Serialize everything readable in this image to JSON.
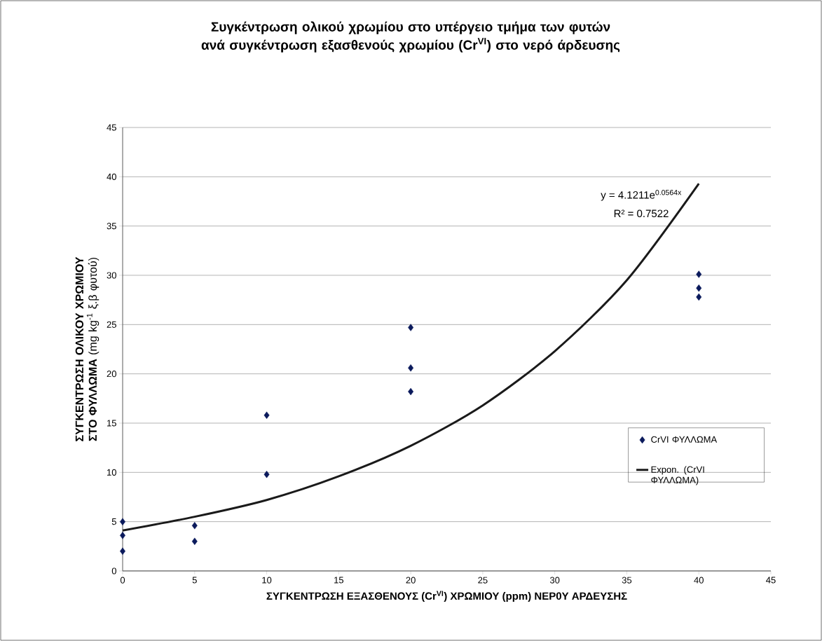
{
  "chart_data": {
    "type": "scatter",
    "title": "Συγκέντρωση ολικού χρωμίου στο υπέργειο τμήμα των φυτών ανά συγκέντρωση εξασθενούς χρωμίου (Cr$^{VI}$) στο νερό άρδευσης",
    "xlabel": "ΣΥΓΚΕΝΤΡΩΣΗ ΕΞΑΣΘΕΝΟΥΣ (Cr$^{VI}$) ΧΡΩΜΙΟΥ (ppm) ΝΕΡ0Υ ΑΡΔΕΥΣΗΣ",
    "ylabel": "**ΣΥΓΚΕΝΤΡΩΣΗ ΟΛΙΚΟΥ ΧΡΩΜΙΟΥ ΣΤΟ ΦΥΛΛΩΜΑ** (mg kg$^{-1}$ ξ.β φυτού)",
    "annotations": [
      "y = 4.1211e$^{0.0564x}$",
      "R² = 0.7522"
    ],
    "series": [
      {
        "name": "CrVI ΦΥΛΛΩΜΑ",
        "color": "#0b1a5c",
        "marker": "diamond",
        "x": [
          0,
          0,
          0,
          5,
          5,
          10,
          10,
          20,
          20,
          20,
          40,
          40,
          40
        ],
        "values": [
          5.0,
          3.6,
          2.0,
          4.6,
          3.0,
          15.8,
          9.8,
          24.7,
          20.6,
          18.2,
          30.1,
          28.7,
          27.8
        ]
      },
      {
        "name": "Expon. (CrVI ΦΥΛΛΩΜΑ)",
        "type": "line",
        "color": "#1a1a1a",
        "x": [
          0,
          5,
          10,
          15,
          20,
          25,
          30,
          35,
          40
        ],
        "values": [
          4.1,
          5.5,
          7.2,
          9.6,
          12.7,
          16.8,
          22.3,
          29.5,
          39.3
        ]
      }
    ],
    "xlim": [
      0,
      45
    ],
    "ylim": [
      0,
      45
    ],
    "xticks": [
      0,
      5,
      10,
      15,
      20,
      25,
      30,
      35,
      40,
      45
    ],
    "yticks": [
      0,
      5,
      10,
      15,
      20,
      25,
      30,
      35,
      40,
      45
    ],
    "grid": "y",
    "legend": "right"
  }
}
